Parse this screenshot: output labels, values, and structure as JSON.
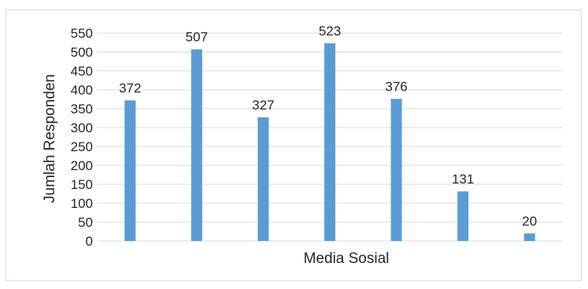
{
  "chart_data": {
    "type": "bar",
    "categories": [
      "",
      "",
      "",
      "",
      "",
      "",
      ""
    ],
    "values": [
      372,
      507,
      327,
      523,
      376,
      131,
      20
    ],
    "title": "",
    "xlabel": "Media Sosial",
    "ylabel": "Jumlah Responden",
    "ylim": [
      0,
      550
    ],
    "yticks": [
      "0",
      "50",
      "100",
      "150",
      "200",
      "250",
      "300",
      "350",
      "400",
      "450",
      "500",
      "550"
    ],
    "grid": true,
    "legend": "none",
    "bar_color": "#5b9bd5",
    "grid_color": "#d9d9d9"
  }
}
